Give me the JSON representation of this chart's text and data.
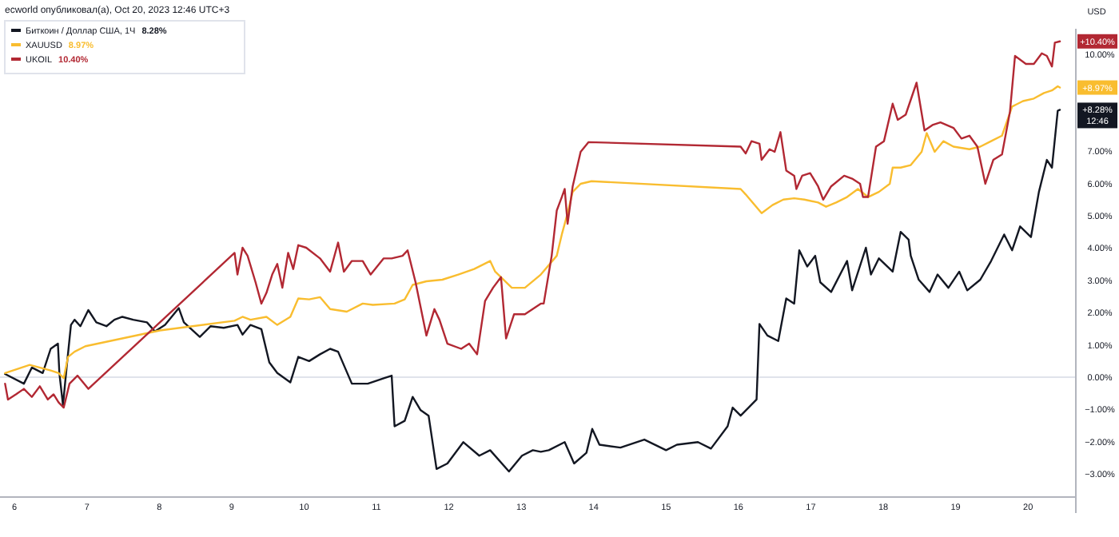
{
  "chart_data": {
    "type": "line",
    "title": "ecworld опубликовал(а), Oct 20, 2023 12:46 UTC+3",
    "xlim": [
      5.8,
      20.66
    ],
    "xticks": [
      6,
      7,
      8,
      9,
      10,
      11,
      12,
      13,
      14,
      15,
      16,
      17,
      18,
      19,
      20
    ],
    "ylim": [
      -3.71,
      10.79
    ],
    "yticks": [
      {
        "value": -3,
        "label": "−3.00%"
      },
      {
        "value": -2,
        "label": "−2.00%"
      },
      {
        "value": -1,
        "label": "−1.00%"
      },
      {
        "value": 0,
        "label": "0.00%"
      },
      {
        "value": 1,
        "label": "1.00%"
      },
      {
        "value": 2,
        "label": "2.00%"
      },
      {
        "value": 3,
        "label": "3.00%"
      },
      {
        "value": 4,
        "label": "4.00%"
      },
      {
        "value": 5,
        "label": "5.00%"
      },
      {
        "value": 6,
        "label": "6.00%"
      },
      {
        "value": 7,
        "label": "7.00%"
      },
      {
        "value": 10,
        "label": "10.00%"
      }
    ],
    "grid": false,
    "legend": "top left",
    "marker": "none",
    "line_style": "solid",
    "ref_lines": [
      {
        "axis": "y",
        "value": 0,
        "color": "#e0e3eb"
      }
    ],
    "series": [
      {
        "name": "Биткоин / Доллар США, 1Ч",
        "color": "#131722",
        "x": [
          5.87,
          6.13,
          6.24,
          6.39,
          6.5,
          6.6,
          6.62,
          6.67,
          6.72,
          6.78,
          6.83,
          6.91,
          7.02,
          7.13,
          7.27,
          7.38,
          7.49,
          7.64,
          7.83,
          7.94,
          8.08,
          8.27,
          8.34,
          8.56,
          8.71,
          8.89,
          9.08,
          9.15,
          9.26,
          9.41,
          9.52,
          9.63,
          9.81,
          9.92,
          10.07,
          10.22,
          10.36,
          10.47,
          10.66,
          10.88,
          11.1,
          11.21,
          11.25,
          11.39,
          11.5,
          11.61,
          11.72,
          11.83,
          11.98,
          12.2,
          12.42,
          12.57,
          12.83,
          13.01,
          13.16,
          13.27,
          13.38,
          13.6,
          13.73,
          13.9,
          13.98,
          14.08,
          14.37,
          14.7,
          15.0,
          15.15,
          15.44,
          15.62,
          15.85,
          15.92,
          16.03,
          16.25,
          16.29,
          16.4,
          16.55,
          16.66,
          16.77,
          16.84,
          16.95,
          17.06,
          17.13,
          17.28,
          17.5,
          17.57,
          17.76,
          17.83,
          17.94,
          18.13,
          18.24,
          18.35,
          18.38,
          18.49,
          18.64,
          18.75,
          18.9,
          19.05,
          19.16,
          19.34,
          19.49,
          19.67,
          19.78,
          19.89,
          20.04,
          20.15,
          20.26,
          20.33,
          20.41,
          20.44
        ],
        "values": [
          0.1,
          -0.2,
          0.3,
          0.13,
          0.88,
          1.04,
          0.13,
          -0.86,
          0.3,
          1.62,
          1.78,
          1.58,
          2.08,
          1.7,
          1.58,
          1.78,
          1.87,
          1.78,
          1.7,
          1.42,
          1.62,
          2.14,
          1.7,
          1.25,
          1.58,
          1.53,
          1.62,
          1.32,
          1.62,
          1.49,
          0.46,
          0.13,
          -0.16,
          0.63,
          0.5,
          0.71,
          0.88,
          0.79,
          -0.2,
          -0.2,
          -0.03,
          0.05,
          -1.52,
          -1.35,
          -0.61,
          -1.02,
          -1.19,
          -2.84,
          -2.67,
          -2.01,
          -2.43,
          -2.26,
          -2.92,
          -2.43,
          -2.26,
          -2.31,
          -2.26,
          -2.01,
          -2.67,
          -2.34,
          -1.6,
          -2.09,
          -2.18,
          -1.93,
          -2.26,
          -2.09,
          -2.01,
          -2.21,
          -1.52,
          -0.94,
          -1.19,
          -0.69,
          1.65,
          1.29,
          1.12,
          2.44,
          2.28,
          3.93,
          3.43,
          3.76,
          2.94,
          2.64,
          3.6,
          2.69,
          4.01,
          3.18,
          3.68,
          3.27,
          4.5,
          4.26,
          3.76,
          3.02,
          2.64,
          3.18,
          2.77,
          3.27,
          2.69,
          3.02,
          3.6,
          4.42,
          3.93,
          4.67,
          4.34,
          5.74,
          6.73,
          6.49,
          8.25,
          8.28
        ]
      },
      {
        "name": "XAUUSD",
        "color": "#f9bd2f",
        "x": [
          5.87,
          6.21,
          6.5,
          6.61,
          6.68,
          6.74,
          6.83,
          6.98,
          8.01,
          9.04,
          9.15,
          9.26,
          9.48,
          9.63,
          9.81,
          9.92,
          10.07,
          10.22,
          10.36,
          10.59,
          10.81,
          10.95,
          11.25,
          11.39,
          11.5,
          11.69,
          11.91,
          12.13,
          12.35,
          12.57,
          12.64,
          12.87,
          13.05,
          13.27,
          13.49,
          13.56,
          13.64,
          13.71,
          13.82,
          13.97,
          16.03,
          16.1,
          16.32,
          16.47,
          16.62,
          16.77,
          16.91,
          17.1,
          17.21,
          17.35,
          17.5,
          17.65,
          17.79,
          17.94,
          18.09,
          18.13,
          18.24,
          18.38,
          18.53,
          18.6,
          18.71,
          18.83,
          18.97,
          19.19,
          19.34,
          19.49,
          19.64,
          19.78,
          19.93,
          20.08,
          20.22,
          20.33,
          20.41,
          20.44
        ],
        "values": [
          0.13,
          0.38,
          0.21,
          0.13,
          -0.03,
          0.63,
          0.79,
          0.96,
          1.45,
          1.75,
          1.87,
          1.78,
          1.87,
          1.62,
          1.87,
          2.44,
          2.41,
          2.48,
          2.11,
          2.03,
          2.28,
          2.24,
          2.28,
          2.41,
          2.86,
          2.97,
          3.02,
          3.18,
          3.35,
          3.6,
          3.27,
          2.77,
          2.77,
          3.18,
          3.76,
          4.42,
          5.08,
          5.74,
          5.99,
          6.07,
          5.83,
          5.66,
          5.08,
          5.33,
          5.5,
          5.54,
          5.5,
          5.41,
          5.28,
          5.41,
          5.58,
          5.83,
          5.58,
          5.74,
          5.99,
          6.49,
          6.49,
          6.57,
          6.98,
          7.56,
          6.98,
          7.31,
          7.14,
          7.06,
          7.14,
          7.31,
          7.48,
          8.38,
          8.55,
          8.63,
          8.8,
          8.88,
          9.01,
          8.97
        ]
      },
      {
        "name": "UKOIL",
        "color": "#b22833",
        "x": [
          5.87,
          5.91,
          6.02,
          6.13,
          6.24,
          6.35,
          6.46,
          6.54,
          6.61,
          6.68,
          6.76,
          6.87,
          7.02,
          9.04,
          9.08,
          9.15,
          9.22,
          9.33,
          9.41,
          9.48,
          9.56,
          9.63,
          9.7,
          9.78,
          9.85,
          9.92,
          10.03,
          10.22,
          10.36,
          10.47,
          10.55,
          10.66,
          10.81,
          10.92,
          11.1,
          11.21,
          11.36,
          11.43,
          11.54,
          11.69,
          11.8,
          11.87,
          11.98,
          12.17,
          12.28,
          12.39,
          12.5,
          12.61,
          12.72,
          12.79,
          12.9,
          13.05,
          13.27,
          13.31,
          13.42,
          13.49,
          13.56,
          13.6,
          13.64,
          13.71,
          13.82,
          13.93,
          16.03,
          16.1,
          16.18,
          16.29,
          16.32,
          16.43,
          16.5,
          16.58,
          16.66,
          16.77,
          16.8,
          16.88,
          16.99,
          17.1,
          17.17,
          17.28,
          17.46,
          17.57,
          17.68,
          17.72,
          17.79,
          17.9,
          18.01,
          18.13,
          18.2,
          18.31,
          18.46,
          18.57,
          18.68,
          18.79,
          18.97,
          19.08,
          19.19,
          19.3,
          19.41,
          19.52,
          19.64,
          19.75,
          19.82,
          19.97,
          20.08,
          20.19,
          20.26,
          20.33,
          20.37,
          20.44
        ],
        "values": [
          -0.2,
          -0.69,
          -0.53,
          -0.36,
          -0.61,
          -0.28,
          -0.69,
          -0.53,
          -0.78,
          -0.94,
          -0.2,
          0.05,
          -0.36,
          3.85,
          3.18,
          4.01,
          3.76,
          2.94,
          2.28,
          2.61,
          3.18,
          3.51,
          2.77,
          3.85,
          3.35,
          4.09,
          4.01,
          3.68,
          3.27,
          4.17,
          3.27,
          3.6,
          3.6,
          3.18,
          3.68,
          3.68,
          3.76,
          3.93,
          2.94,
          1.29,
          2.11,
          1.78,
          1.04,
          0.88,
          1.04,
          0.71,
          2.36,
          2.77,
          3.1,
          1.2,
          1.95,
          1.95,
          2.28,
          2.28,
          3.76,
          5.16,
          5.58,
          5.83,
          4.75,
          5.91,
          6.98,
          7.28,
          7.14,
          6.93,
          7.31,
          7.23,
          6.73,
          7.06,
          6.98,
          7.59,
          6.4,
          6.24,
          5.83,
          6.24,
          6.32,
          5.91,
          5.5,
          5.91,
          6.24,
          6.15,
          5.99,
          5.58,
          5.58,
          7.14,
          7.31,
          8.47,
          7.97,
          8.13,
          9.12,
          7.64,
          7.81,
          7.89,
          7.72,
          7.39,
          7.48,
          7.14,
          5.99,
          6.73,
          6.9,
          8.22,
          9.95,
          9.7,
          9.7,
          10.03,
          9.95,
          9.62,
          10.36,
          10.4
        ]
      }
    ],
    "annotations": [
      "USD",
      "+8.28%",
      "+8.97%",
      "+10.40%",
      "12:46",
      "8.28%",
      "8.97%",
      "10.40%"
    ]
  }
}
